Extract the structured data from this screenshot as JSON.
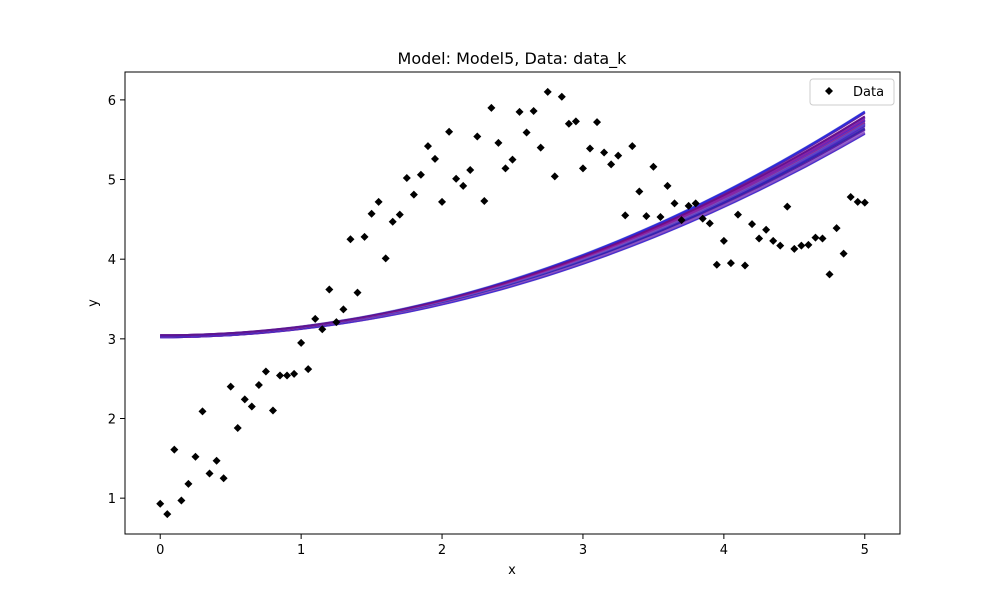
{
  "chart_data": {
    "type": "scatter",
    "title": "Model: Model5, Data: data_k",
    "xlabel": "x",
    "ylabel": "y",
    "xlim": [
      -0.25,
      5.25
    ],
    "ylim": [
      0.55,
      6.35
    ],
    "xticks": [
      0,
      1,
      2,
      3,
      4,
      5
    ],
    "yticks": [
      1,
      2,
      3,
      4,
      5,
      6
    ],
    "grid": false,
    "legend": {
      "placement": "top-right",
      "entries": [
        "Data"
      ]
    },
    "series": [
      {
        "name": "Data",
        "kind": "scatter",
        "marker": "diamond",
        "color": "#000000",
        "x": [
          0.0,
          0.05,
          0.1,
          0.15,
          0.2,
          0.25,
          0.3,
          0.35,
          0.4,
          0.45,
          0.5,
          0.55,
          0.6,
          0.65,
          0.7,
          0.75,
          0.8,
          0.85,
          0.9,
          0.95,
          1.0,
          1.05,
          1.1,
          1.15,
          1.2,
          1.25,
          1.3,
          1.35,
          1.4,
          1.45,
          1.5,
          1.55,
          1.6,
          1.65,
          1.7,
          1.75,
          1.8,
          1.85,
          1.9,
          1.95,
          2.0,
          2.05,
          2.1,
          2.15,
          2.2,
          2.25,
          2.3,
          2.35,
          2.4,
          2.45,
          2.5,
          2.55,
          2.6,
          2.65,
          2.7,
          2.75,
          2.8,
          2.85,
          2.9,
          2.95,
          3.0,
          3.05,
          3.1,
          3.15,
          3.2,
          3.25,
          3.3,
          3.35,
          3.4,
          3.45,
          3.5,
          3.55,
          3.6,
          3.65,
          3.7,
          3.75,
          3.8,
          3.85,
          3.9,
          3.95,
          4.0,
          4.05,
          4.1,
          4.15,
          4.2,
          4.25,
          4.3,
          4.35,
          4.4,
          4.45,
          4.5,
          4.55,
          4.6,
          4.65,
          4.7,
          4.75,
          4.8,
          4.85,
          4.9,
          4.95,
          5.0
        ],
        "y": [
          0.93,
          0.8,
          1.61,
          0.97,
          1.18,
          1.52,
          2.09,
          1.31,
          1.47,
          1.25,
          2.4,
          1.88,
          2.24,
          2.15,
          2.42,
          2.59,
          2.1,
          2.54,
          2.54,
          2.56,
          2.95,
          2.62,
          3.25,
          3.12,
          3.62,
          3.21,
          3.37,
          4.25,
          3.58,
          4.28,
          4.57,
          4.72,
          4.01,
          4.47,
          4.56,
          5.02,
          4.81,
          5.06,
          5.42,
          5.26,
          4.72,
          5.6,
          5.01,
          4.92,
          5.12,
          5.54,
          4.73,
          5.9,
          5.46,
          5.14,
          5.25,
          5.85,
          5.59,
          5.86,
          5.4,
          6.1,
          5.04,
          6.04,
          5.7,
          5.73,
          5.14,
          5.39,
          5.72,
          5.34,
          5.19,
          5.3,
          4.55,
          5.42,
          4.85,
          4.54,
          5.16,
          4.53,
          4.92,
          4.7,
          4.49,
          4.67,
          4.7,
          4.51,
          4.45,
          3.93,
          4.23,
          3.95,
          4.56,
          3.92,
          4.44,
          4.26,
          4.37,
          4.23,
          4.17,
          4.66,
          4.13,
          4.17,
          4.18,
          4.27,
          4.26,
          3.81,
          4.39,
          4.07,
          4.78,
          4.72,
          4.71
        ]
      },
      {
        "kind": "posterior-curves",
        "x_range": [
          0,
          5
        ],
        "curve_form": "a + b*x^2",
        "a_values": [
          3.02,
          3.024,
          3.028,
          3.032,
          3.036,
          3.04,
          3.044
        ],
        "b_values": [
          0.102,
          0.104,
          0.106,
          0.107,
          0.1085,
          0.11,
          0.1125
        ],
        "colors": [
          "#c060c0",
          "#9b1f9b",
          "#7a0a7a",
          "#1f1faa",
          "#1414c8",
          "#3333ff",
          "#e070c8",
          "#2020b0",
          "#5050d0"
        ]
      }
    ]
  }
}
